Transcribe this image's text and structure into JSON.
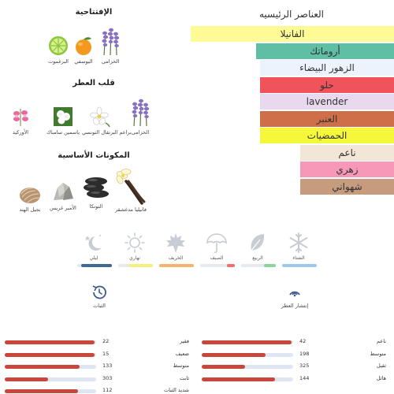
{
  "notes": {
    "top": {
      "title": "الإفتتاحية",
      "items": [
        {
          "label": "الخزامى",
          "icon": "lavender-icon"
        },
        {
          "label": "اليوسفي",
          "icon": "mandarin-icon"
        },
        {
          "label": "البرغموت",
          "icon": "bergamot-icon"
        }
      ]
    },
    "heart": {
      "title": "قلب العطر",
      "items": [
        {
          "label": "الخزامى",
          "icon": "lavender-icon"
        },
        {
          "label": "براعم البرتقال التونسي",
          "icon": "orange-blossom-icon"
        },
        {
          "label": "ياسمين سامباك",
          "icon": "jasmine-sambac-icon"
        },
        {
          "label": "الأوركيد",
          "icon": "orchid-icon"
        }
      ]
    },
    "base": {
      "title": "المكونات الأساسية",
      "items": [
        {
          "label": "فانيليا مدغشقر",
          "icon": "vanilla-icon"
        },
        {
          "label": "التونكا",
          "icon": "tonka-icon"
        },
        {
          "label": "الأمبر غريس",
          "icon": "ambergris-icon"
        },
        {
          "label": "نجيل الهند",
          "icon": "vetiver-icon"
        }
      ]
    }
  },
  "accords": {
    "title": "العناصر الرئيسيه",
    "items": [
      {
        "label": "الفانيلا",
        "strength": 1.0,
        "color": "#fefa96"
      },
      {
        "label": "أروماتك",
        "strength": 0.68,
        "color": "#5fbfa5"
      },
      {
        "label": "الزهور البيضاء",
        "strength": 0.66,
        "color": "#edf3fc"
      },
      {
        "label": "حلو",
        "strength": 0.66,
        "color": "#f0535a"
      },
      {
        "label": "lavender",
        "strength": 0.66,
        "color": "#e8d9ee"
      },
      {
        "label": "العنبر",
        "strength": 0.66,
        "color": "#cf6f4a"
      },
      {
        "label": "الحمضيات",
        "strength": 0.66,
        "color": "#f5f73a"
      },
      {
        "label": "ناعم",
        "strength": 0.46,
        "color": "#f2e6d7"
      },
      {
        "label": "زهري",
        "strength": 0.46,
        "color": "#f798b8"
      },
      {
        "label": "شهواني",
        "strength": 0.46,
        "color": "#c79b7d"
      }
    ]
  },
  "seasons": [
    {
      "label": "ليلي",
      "icon": "moon-stars-icon",
      "level": 0.88,
      "color": "#3d6a95"
    },
    {
      "label": "نهاري",
      "icon": "sun-icon",
      "level": 0.7,
      "color": "#f4f07c"
    },
    {
      "label": "الخريف",
      "icon": "maple-leaf-icon",
      "level": 1.0,
      "color": "#f3b46b"
    },
    {
      "label": "الصيف",
      "icon": "umbrella-icon",
      "level": 0.22,
      "color": "#f06e6e"
    },
    {
      "label": "الربيع",
      "icon": "leaf-icon",
      "level": 0.34,
      "color": "#8ed49a"
    },
    {
      "label": "الشتاء",
      "icon": "snowflake-icon",
      "level": 1.0,
      "color": "#9ec9ec"
    }
  ],
  "longevity": {
    "title": "الثبات",
    "icon": "clock-history-icon",
    "rows": [
      {
        "label": "فقير",
        "count": "22",
        "level": 0.98
      },
      {
        "label": "ضعيف",
        "count": "15",
        "level": 0.98
      },
      {
        "label": "متوسط",
        "count": "133",
        "level": 0.82
      },
      {
        "label": "ثابت",
        "count": "303",
        "level": 0.47
      },
      {
        "label": "شديد الثبات",
        "count": "112",
        "level": 0.8
      }
    ]
  },
  "sillage": {
    "title": "إنتشار العطر",
    "icon": "sillage-icon",
    "rows": [
      {
        "label": "ناعم",
        "count": "42",
        "level": 0.98
      },
      {
        "label": "متوسط",
        "count": "198",
        "level": 0.7
      },
      {
        "label": "ثقيل",
        "count": "325",
        "level": 0.47
      },
      {
        "label": "هائل",
        "count": "144",
        "level": 0.8
      }
    ]
  }
}
